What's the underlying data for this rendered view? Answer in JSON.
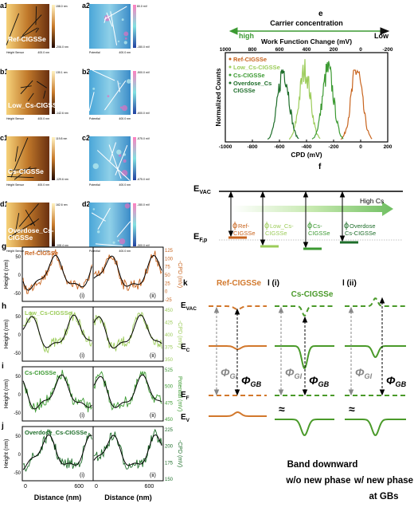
{
  "afm": {
    "height_sensor": "Height Sensor",
    "potential": "Potential",
    "scale": "400.0 nm",
    "rows": [
      {
        "label1": "a1",
        "label2": "a2",
        "sample_lines": [
          "Ref-CIGSSe"
        ],
        "h_max": "158.0 nm",
        "h_min": "-206.0 nm",
        "p_max": "80.0 mV",
        "p_min": "-150.0 mV"
      },
      {
        "label1": "b1",
        "label2": "b2",
        "sample_lines": [
          "Low_Cs-CIGSSe"
        ],
        "h_max": "130.1 nm",
        "h_min": "-142.6 nm",
        "p_max": "-500.0 mV",
        "p_min": "-600.0 mV"
      },
      {
        "label1": "c1",
        "label2": "c2",
        "sample_lines": [
          "Cs-CIGSSe"
        ],
        "h_max": "119.8 nm",
        "h_min": "-129.6 nm",
        "p_max": "-575.0 mV",
        "p_min": "-675.0 mV"
      },
      {
        "label1": "d1",
        "label2": "d2",
        "sample_lines": [
          "Overdose_Cs-",
          "CIGSSe"
        ],
        "h_max": "162.6 nm",
        "h_min": "-108.4 nm",
        "p_max": "-150.0 mV",
        "p_min": "-300.0 mV"
      }
    ]
  },
  "e": {
    "label": "e",
    "carrier": "Carrier concentration",
    "high": "high",
    "low": "Low",
    "top_title": "Work Function Change (mV)",
    "top_ticks": [
      "1000",
      "800",
      "600",
      "400",
      "200",
      "0",
      "-200"
    ],
    "xlabel": "CPD (mV)",
    "xticks": [
      "-1000",
      "-800",
      "-600",
      "-400",
      "-200",
      "0",
      "200"
    ],
    "ylabel": "Normalized Counts",
    "legend": [
      {
        "name_lines": [
          "Ref-CIGSSe"
        ],
        "color": "#c8641e"
      },
      {
        "name_lines": [
          "Low_Cs-CIGSSe"
        ],
        "color": "#9ccc5a"
      },
      {
        "name_lines": [
          "Cs-CIGSSe"
        ],
        "color": "#3c9a32"
      },
      {
        "name_lines": [
          "Overdose_Cs",
          "CIGSSe"
        ],
        "color": "#1e6e2a"
      }
    ]
  },
  "f": {
    "label": "f",
    "evac": [
      "E",
      "VAC"
    ],
    "ef": [
      "E",
      "F,p"
    ],
    "high_cs": "High Cs",
    "phi": [
      {
        "sym": "ϕ",
        "sub_lines": [
          "Ref-",
          "CIGSSe"
        ],
        "color": "#c8641e"
      },
      {
        "sym": "ϕ",
        "sub_lines": [
          "Low_Cs-",
          "CIGSSe"
        ],
        "color": "#9ccc5a"
      },
      {
        "sym": "ϕ",
        "sub_lines": [
          "Cs-",
          "CIGSSe"
        ],
        "color": "#3c9a32"
      },
      {
        "sym": "ϕ",
        "sub_lines": [
          "Overdose",
          "Cs-CIGSSe"
        ],
        "color": "#1e6e2a"
      }
    ]
  },
  "profiles": {
    "ylabel": "Height (nm)",
    "xlabel": "Distance (nm)",
    "xticks": [
      "0",
      "600"
    ],
    "panels": [
      {
        "label": "g",
        "sample": "Ref-CIGSSe",
        "color": "#c8641e",
        "y2label": "-CPD (mV)",
        "yticks": [
          "50",
          "0",
          "-50"
        ],
        "y2ticks": [
          "125",
          "100",
          "75",
          "50",
          "25",
          "0",
          "-25"
        ],
        "parts": [
          "(i)",
          "(ii)"
        ]
      },
      {
        "label": "h",
        "sample": "Low_Cs-CIGSSe",
        "color": "#9ccc5a",
        "y2label": "-CPD (mV)",
        "yticks": [
          "50",
          "0",
          "-50"
        ],
        "y2ticks": [
          "450",
          "425",
          "400",
          "375",
          "350"
        ],
        "parts": [
          "(i)",
          "(ii)"
        ]
      },
      {
        "label": "i",
        "sample": "Cs-CIGSSe",
        "color": "#3c9a32",
        "y2label": "Potential (mV)",
        "yticks": [
          "50",
          "0",
          "-50"
        ],
        "y2ticks": [
          "525",
          "500",
          "475",
          "450"
        ],
        "parts": [
          "(i)",
          "(ii)"
        ]
      },
      {
        "label": "j",
        "sample": "Overdose_Cs-CIGSSe",
        "color": "#1e6e2a",
        "y2label": "-CPD (mV)",
        "yticks": [
          "50",
          "0",
          "-50"
        ],
        "y2ticks": [
          "225",
          "200",
          "175",
          "150"
        ],
        "parts": [
          "(i)",
          "(ii)"
        ]
      }
    ]
  },
  "bands": {
    "k": {
      "label": "k",
      "sample": "Ref-CIGSSe"
    },
    "l": {
      "label_i": "l (i)",
      "label_ii": "l (ii)",
      "sample": "Cs-CIGSSe"
    },
    "levels": [
      [
        "E",
        "VAC"
      ],
      [
        "E",
        "C"
      ],
      [
        "E",
        "F"
      ],
      [
        "E",
        "V"
      ]
    ],
    "phi_gi": [
      "Φ",
      "GI"
    ],
    "phi_gb": [
      "Φ",
      "GB"
    ],
    "approx": "≈",
    "captions": [
      [
        "Band downward",
        "w/o new phase"
      ],
      [
        "w/ new phase",
        "at GBs"
      ]
    ]
  }
}
